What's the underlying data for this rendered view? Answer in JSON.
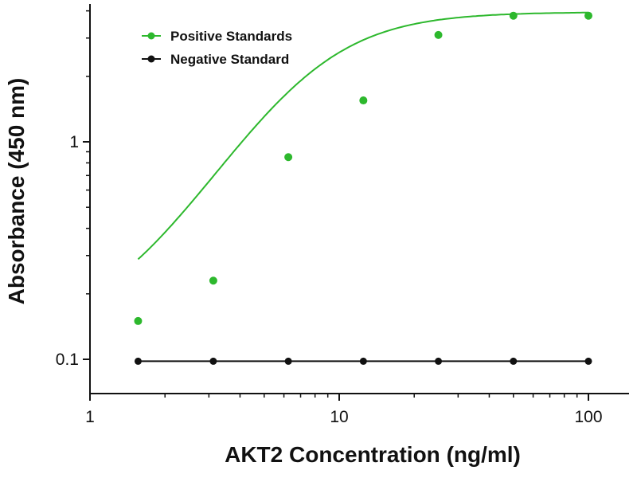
{
  "chart_data": {
    "type": "scatter",
    "title": "",
    "xlabel": "AKT2 Concentration (ng/ml)",
    "ylabel": "Absorbance (450 nm)",
    "xscale": "log",
    "yscale": "log",
    "xlim": [
      1,
      120
    ],
    "ylim": [
      0.08,
      4.2
    ],
    "x_ticks": [
      1,
      10,
      100
    ],
    "x_tick_labels": [
      "1",
      "10",
      "100"
    ],
    "y_ticks": [
      0.1,
      1
    ],
    "y_tick_labels": [
      "0.1",
      "1"
    ],
    "grid": false,
    "legend_position": "top-left",
    "series": [
      {
        "name": "Positive Standards",
        "color": "#2db82d",
        "fit": "4PL curve",
        "x": [
          1.56,
          3.125,
          6.25,
          12.5,
          25,
          50,
          100
        ],
        "y": [
          0.15,
          0.23,
          0.85,
          1.55,
          3.1,
          3.8,
          3.8
        ]
      },
      {
        "name": "Negative Standard",
        "color": "#111111",
        "fit": "line",
        "x": [
          1.56,
          3.125,
          6.25,
          12.5,
          25,
          50,
          100
        ],
        "y": [
          0.098,
          0.098,
          0.098,
          0.098,
          0.098,
          0.098,
          0.098
        ]
      }
    ]
  }
}
